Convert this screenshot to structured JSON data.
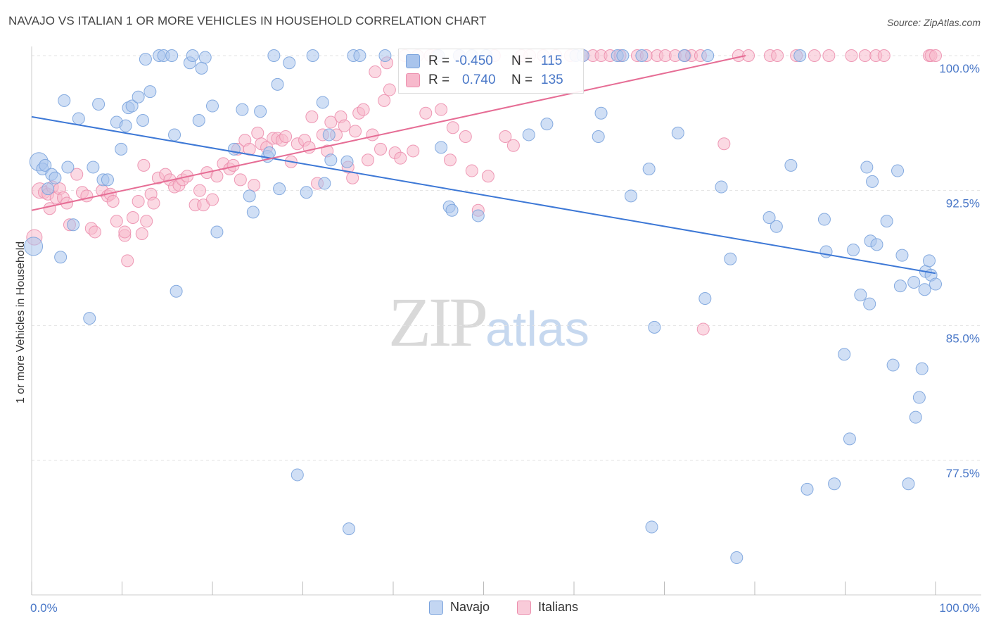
{
  "header": {
    "title": "NAVAJO VS ITALIAN 1 OR MORE VEHICLES IN HOUSEHOLD CORRELATION CHART",
    "source": "Source: ZipAtlas.com"
  },
  "watermark": {
    "zip": "ZIP",
    "atlas": "atlas"
  },
  "legend": {
    "rows": [
      {
        "r_label": "R =",
        "r_value": "-0.450",
        "n_label": "N =",
        "n_value": "115",
        "color": "#a9c4ec",
        "stroke": "#7aa3dd"
      },
      {
        "r_label": "R =",
        "r_value": "0.740",
        "n_label": "N =",
        "n_value": "135",
        "color": "#f7b9cc",
        "stroke": "#ec8fae"
      }
    ]
  },
  "bottom_legend": [
    "Navajo",
    "Italians"
  ],
  "colors": {
    "navajo_fill": "#a9c4ec",
    "navajo_line": "#3d78d6",
    "italian_fill": "#f7b9cc",
    "italian_line": "#e66d95",
    "tick": "#4a78c8",
    "grid": "#e3e3e3"
  },
  "chart_data": {
    "type": "scatter",
    "title": "NAVAJO VS ITALIAN 1 OR MORE VEHICLES IN HOUSEHOLD CORRELATION CHART",
    "xlabel": "",
    "ylabel": "1 or more Vehicles in Household",
    "x_tick_labels": [
      "0.0%",
      "100.0%"
    ],
    "y_tick_labels": [
      "100.0%",
      "92.5%",
      "85.0%",
      "77.5%"
    ],
    "y_ticks": [
      100.0,
      92.5,
      85.0,
      77.5
    ],
    "xlim": [
      0,
      100
    ],
    "ylim": [
      70.8,
      101.0
    ],
    "grid": true,
    "series": [
      {
        "name": "Navajo",
        "r": -0.45,
        "n": 115,
        "trend": {
          "x": [
            0,
            100
          ],
          "y": [
            96.6,
            87.9
          ]
        },
        "points": [
          [
            0.2,
            89.4
          ],
          [
            0.8,
            94.1
          ],
          [
            1.2,
            93.7
          ],
          [
            1.5,
            93.9
          ],
          [
            1.8,
            92.6
          ],
          [
            2.2,
            93.4
          ],
          [
            2.6,
            93.2
          ],
          [
            3.2,
            88.8
          ],
          [
            3.6,
            97.5
          ],
          [
            4.0,
            93.8
          ],
          [
            4.6,
            90.6
          ],
          [
            5.2,
            96.5
          ],
          [
            6.4,
            85.4
          ],
          [
            6.8,
            93.8
          ],
          [
            7.4,
            97.3
          ],
          [
            7.9,
            93.1
          ],
          [
            8.4,
            93.1
          ],
          [
            9.4,
            96.3
          ],
          [
            9.9,
            94.8
          ],
          [
            10.4,
            96.1
          ],
          [
            10.7,
            97.1
          ],
          [
            11.1,
            97.2
          ],
          [
            11.8,
            97.7
          ],
          [
            12.3,
            96.4
          ],
          [
            12.6,
            99.8
          ],
          [
            13.1,
            98.0
          ],
          [
            14.1,
            100.0
          ],
          [
            14.6,
            100.0
          ],
          [
            15.5,
            100.0
          ],
          [
            15.8,
            95.6
          ],
          [
            16.0,
            86.9
          ],
          [
            17.5,
            99.6
          ],
          [
            17.8,
            100.0
          ],
          [
            18.5,
            96.4
          ],
          [
            18.8,
            99.3
          ],
          [
            19.2,
            99.9
          ],
          [
            20.0,
            97.2
          ],
          [
            20.5,
            90.2
          ],
          [
            22.4,
            94.8
          ],
          [
            23.3,
            97.0
          ],
          [
            24.1,
            92.2
          ],
          [
            24.5,
            91.3
          ],
          [
            25.3,
            96.9
          ],
          [
            26.1,
            94.4
          ],
          [
            26.3,
            94.6
          ],
          [
            26.8,
            100.0
          ],
          [
            27.2,
            98.4
          ],
          [
            27.4,
            92.6
          ],
          [
            28.5,
            99.6
          ],
          [
            29.4,
            76.7
          ],
          [
            30.4,
            92.4
          ],
          [
            31.1,
            100.0
          ],
          [
            32.2,
            97.4
          ],
          [
            32.4,
            92.9
          ],
          [
            32.9,
            95.6
          ],
          [
            33.1,
            94.2
          ],
          [
            34.9,
            94.1
          ],
          [
            35.1,
            73.7
          ],
          [
            35.6,
            100.0
          ],
          [
            36.3,
            100.0
          ],
          [
            39.1,
            100.0
          ],
          [
            45.0,
            100.0
          ],
          [
            45.3,
            94.9
          ],
          [
            46.2,
            91.6
          ],
          [
            46.5,
            91.4
          ],
          [
            47.3,
            100.0
          ],
          [
            48.7,
            100.0
          ],
          [
            49.4,
            91.1
          ],
          [
            50.3,
            100.0
          ],
          [
            55.0,
            95.6
          ],
          [
            57.0,
            96.2
          ],
          [
            60.2,
            100.0
          ],
          [
            61.0,
            100.0
          ],
          [
            62.7,
            95.5
          ],
          [
            63.0,
            96.8
          ],
          [
            64.8,
            100.0
          ],
          [
            65.4,
            100.0
          ],
          [
            66.3,
            92.2
          ],
          [
            67.5,
            100.0
          ],
          [
            68.3,
            93.7
          ],
          [
            68.6,
            73.8
          ],
          [
            68.9,
            84.9
          ],
          [
            71.5,
            95.7
          ],
          [
            72.2,
            100.0
          ],
          [
            74.5,
            86.5
          ],
          [
            74.8,
            100.0
          ],
          [
            76.3,
            92.7
          ],
          [
            77.3,
            88.7
          ],
          [
            78.0,
            72.1
          ],
          [
            81.6,
            91.0
          ],
          [
            82.4,
            90.5
          ],
          [
            84.0,
            93.9
          ],
          [
            85.0,
            100.0
          ],
          [
            85.8,
            75.9
          ],
          [
            87.7,
            90.9
          ],
          [
            87.9,
            89.1
          ],
          [
            88.8,
            76.2
          ],
          [
            89.9,
            83.4
          ],
          [
            90.5,
            78.7
          ],
          [
            90.9,
            89.2
          ],
          [
            91.7,
            86.7
          ],
          [
            92.4,
            93.8
          ],
          [
            92.7,
            86.2
          ],
          [
            92.8,
            89.7
          ],
          [
            93.0,
            93.0
          ],
          [
            93.5,
            89.5
          ],
          [
            94.6,
            90.8
          ],
          [
            95.3,
            82.8
          ],
          [
            95.8,
            93.6
          ],
          [
            96.1,
            87.2
          ],
          [
            96.3,
            88.9
          ],
          [
            97.0,
            76.2
          ],
          [
            97.6,
            87.4
          ],
          [
            97.8,
            79.9
          ],
          [
            98.2,
            81.0
          ],
          [
            98.5,
            82.6
          ],
          [
            98.8,
            87.0
          ],
          [
            98.9,
            88.0
          ],
          [
            99.3,
            88.6
          ],
          [
            99.5,
            87.8
          ],
          [
            100.0,
            87.3
          ]
        ]
      },
      {
        "name": "Italians",
        "r": 0.74,
        "n": 135,
        "trend": {
          "x": [
            0,
            79
          ],
          "y": [
            91.4,
            100.0
          ]
        },
        "points": [
          [
            0.3,
            89.9
          ],
          [
            0.9,
            92.5
          ],
          [
            1.4,
            92.4
          ],
          [
            1.8,
            92.3
          ],
          [
            2.0,
            91.5
          ],
          [
            2.3,
            92.7
          ],
          [
            2.7,
            92.1
          ],
          [
            3.1,
            92.6
          ],
          [
            3.5,
            92.1
          ],
          [
            3.9,
            91.8
          ],
          [
            4.2,
            90.6
          ],
          [
            5.0,
            93.4
          ],
          [
            5.6,
            92.4
          ],
          [
            6.1,
            92.2
          ],
          [
            6.6,
            90.4
          ],
          [
            7.0,
            90.2
          ],
          [
            7.8,
            92.5
          ],
          [
            8.4,
            92.2
          ],
          [
            8.7,
            92.3
          ],
          [
            9.0,
            91.9
          ],
          [
            9.4,
            90.8
          ],
          [
            10.3,
            90.0
          ],
          [
            10.3,
            90.2
          ],
          [
            10.6,
            88.6
          ],
          [
            11.2,
            91.0
          ],
          [
            11.8,
            91.9
          ],
          [
            12.2,
            90.1
          ],
          [
            12.4,
            93.9
          ],
          [
            12.7,
            90.8
          ],
          [
            13.2,
            92.3
          ],
          [
            13.5,
            91.8
          ],
          [
            14.0,
            93.2
          ],
          [
            14.8,
            93.4
          ],
          [
            15.3,
            93.1
          ],
          [
            15.8,
            92.7
          ],
          [
            16.3,
            92.8
          ],
          [
            16.7,
            93.1
          ],
          [
            17.2,
            93.3
          ],
          [
            18.1,
            91.7
          ],
          [
            18.6,
            92.5
          ],
          [
            19.0,
            91.7
          ],
          [
            19.4,
            93.5
          ],
          [
            20.0,
            92.0
          ],
          [
            20.5,
            93.3
          ],
          [
            21.2,
            94.0
          ],
          [
            21.9,
            93.7
          ],
          [
            22.3,
            93.9
          ],
          [
            22.8,
            94.8
          ],
          [
            23.1,
            93.1
          ],
          [
            23.6,
            95.3
          ],
          [
            24.1,
            94.8
          ],
          [
            24.6,
            92.8
          ],
          [
            25.0,
            95.7
          ],
          [
            25.4,
            95.1
          ],
          [
            26.0,
            94.9
          ],
          [
            26.7,
            95.4
          ],
          [
            27.2,
            95.4
          ],
          [
            27.7,
            95.3
          ],
          [
            28.1,
            95.5
          ],
          [
            28.7,
            94.1
          ],
          [
            29.4,
            95.1
          ],
          [
            30.2,
            95.3
          ],
          [
            30.7,
            94.9
          ],
          [
            31.0,
            96.6
          ],
          [
            31.6,
            92.9
          ],
          [
            32.2,
            95.6
          ],
          [
            32.7,
            94.7
          ],
          [
            33.1,
            96.3
          ],
          [
            33.7,
            95.6
          ],
          [
            34.2,
            96.6
          ],
          [
            34.6,
            96.1
          ],
          [
            35.0,
            93.8
          ],
          [
            35.5,
            93.2
          ],
          [
            35.8,
            95.8
          ],
          [
            36.2,
            96.8
          ],
          [
            36.7,
            97.0
          ],
          [
            37.2,
            94.2
          ],
          [
            37.7,
            95.6
          ],
          [
            38.0,
            99.1
          ],
          [
            38.6,
            94.8
          ],
          [
            39.0,
            97.5
          ],
          [
            39.3,
            99.6
          ],
          [
            39.6,
            98.1
          ],
          [
            40.2,
            94.6
          ],
          [
            40.8,
            94.3
          ],
          [
            41.3,
            100.0
          ],
          [
            42.2,
            94.7
          ],
          [
            42.7,
            100.0
          ],
          [
            43.6,
            96.8
          ],
          [
            44.1,
            100.0
          ],
          [
            44.8,
            100.0
          ],
          [
            45.3,
            97.0
          ],
          [
            46.3,
            94.2
          ],
          [
            46.6,
            96.0
          ],
          [
            47.3,
            100.0
          ],
          [
            48.0,
            95.5
          ],
          [
            48.7,
            93.6
          ],
          [
            49.4,
            91.4
          ],
          [
            50.5,
            93.3
          ],
          [
            51.2,
            100.0
          ],
          [
            52.4,
            95.5
          ],
          [
            53.3,
            95.0
          ],
          [
            54.2,
            100.0
          ],
          [
            55.1,
            100.0
          ],
          [
            56.6,
            100.0
          ],
          [
            58.0,
            100.0
          ],
          [
            59.6,
            100.0
          ],
          [
            60.2,
            100.0
          ],
          [
            61.0,
            100.0
          ],
          [
            62.1,
            100.0
          ],
          [
            63.0,
            100.0
          ],
          [
            64.0,
            100.0
          ],
          [
            65.1,
            100.0
          ],
          [
            67.0,
            100.0
          ],
          [
            68.0,
            100.0
          ],
          [
            69.2,
            100.0
          ],
          [
            70.1,
            100.0
          ],
          [
            71.2,
            100.0
          ],
          [
            72.3,
            100.0
          ],
          [
            73.0,
            100.0
          ],
          [
            74.0,
            100.0
          ],
          [
            74.3,
            84.8
          ],
          [
            76.6,
            95.1
          ],
          [
            78.2,
            100.0
          ],
          [
            79.3,
            100.0
          ],
          [
            81.7,
            100.0
          ],
          [
            82.5,
            100.0
          ],
          [
            84.6,
            100.0
          ],
          [
            86.6,
            100.0
          ],
          [
            88.2,
            100.0
          ],
          [
            90.7,
            100.0
          ],
          [
            92.2,
            100.0
          ],
          [
            93.4,
            100.0
          ],
          [
            94.3,
            100.0
          ],
          [
            99.3,
            100.0
          ],
          [
            99.5,
            100.0
          ],
          [
            100.0,
            100.0
          ]
        ]
      }
    ]
  }
}
